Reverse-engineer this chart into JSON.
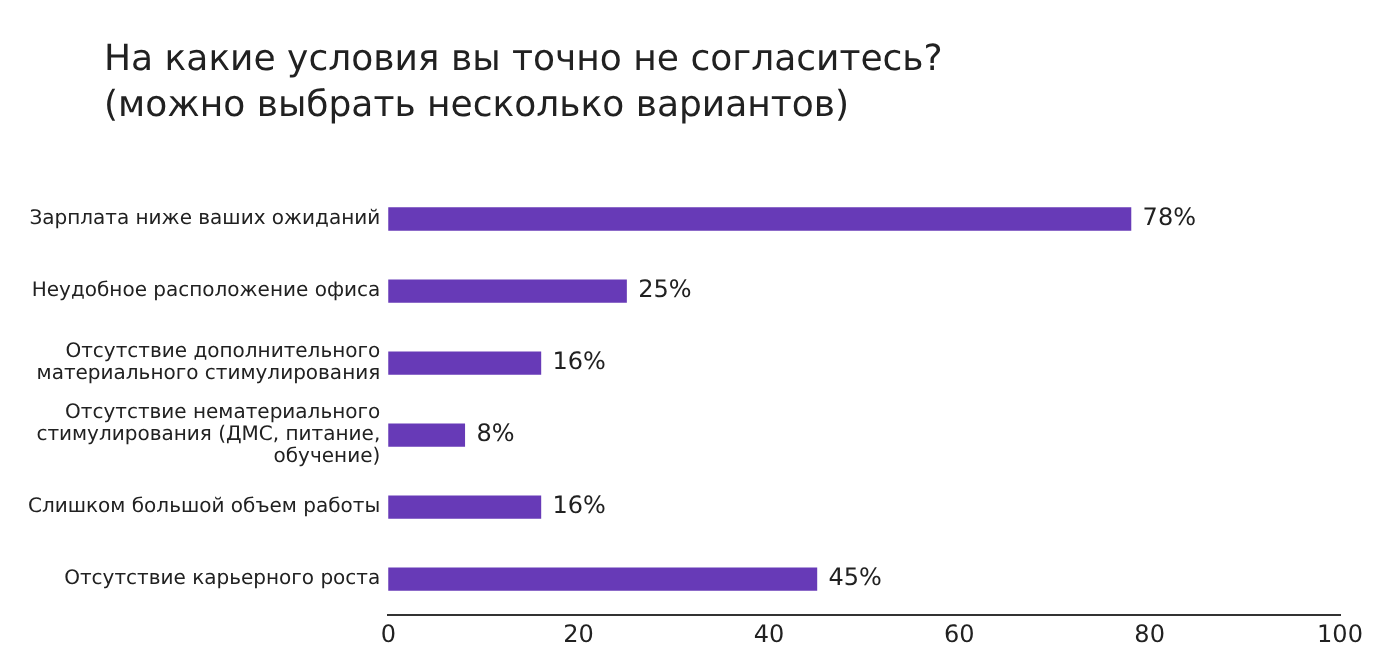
{
  "chart_data": {
    "type": "bar",
    "orientation": "horizontal",
    "title": "На какие условия вы точно не согласитесь? (можно выбрать несколько вариантов)",
    "categories": [
      "Зарплата ниже ваших ожиданий",
      "Неудобное расположение офиса",
      "Отсутствие дополнительного материального стимулирования",
      "Отсутствие нематериального стимулирования (ДМС, питание, обучение)",
      "Слишком большой объем работы",
      "Отсутствие карьерного роста"
    ],
    "values": [
      78,
      25,
      16,
      8,
      16,
      45
    ],
    "value_labels": [
      "78%",
      "25%",
      "16%",
      "8%",
      "16%",
      "45%"
    ],
    "color": "#673ab7",
    "xlim": [
      0,
      100
    ],
    "xticks": [
      0,
      20,
      40,
      60,
      80,
      100
    ],
    "grid": false,
    "legend": false
  }
}
